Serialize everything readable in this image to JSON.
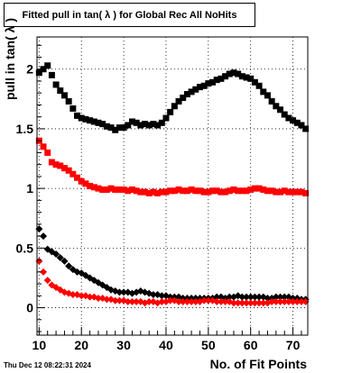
{
  "title": "Fitted pull in tan( λ ) for Global Rec All NoHits",
  "timestamp": "Thu Dec 12 08:22:31 2024",
  "chart_data": {
    "type": "scatter",
    "xlabel": "No. of Fit Points",
    "ylabel": "pull in tan( λ )",
    "xlim": [
      9.5,
      73.5
    ],
    "ylim": [
      -0.23,
      2.27
    ],
    "grid": true,
    "x_ticks": [
      10,
      20,
      30,
      40,
      50,
      60,
      70
    ],
    "y_ticks": [
      0,
      0.5,
      1,
      1.5,
      2
    ],
    "x": [
      10,
      11,
      12,
      13,
      14,
      15,
      16,
      17,
      18,
      19,
      20,
      21,
      22,
      23,
      24,
      25,
      26,
      27,
      28,
      29,
      30,
      31,
      32,
      33,
      34,
      35,
      36,
      37,
      38,
      39,
      40,
      41,
      42,
      43,
      44,
      45,
      46,
      47,
      48,
      49,
      50,
      51,
      52,
      53,
      54,
      55,
      56,
      57,
      58,
      59,
      60,
      61,
      62,
      63,
      64,
      65,
      66,
      67,
      68,
      69,
      70,
      71,
      72,
      73
    ],
    "series": [
      {
        "color": "#000000",
        "marker": "square",
        "values": [
          1.97,
          2.0,
          2.03,
          1.95,
          1.87,
          1.82,
          1.78,
          1.73,
          1.67,
          1.61,
          1.59,
          1.58,
          1.57,
          1.56,
          1.55,
          1.54,
          1.52,
          1.51,
          1.49,
          1.51,
          1.51,
          1.53,
          1.56,
          1.55,
          1.53,
          1.54,
          1.53,
          1.54,
          1.53,
          1.55,
          1.59,
          1.64,
          1.69,
          1.73,
          1.76,
          1.79,
          1.81,
          1.83,
          1.85,
          1.86,
          1.88,
          1.89,
          1.91,
          1.92,
          1.94,
          1.96,
          1.97,
          1.96,
          1.94,
          1.93,
          1.92,
          1.89,
          1.86,
          1.81,
          1.78,
          1.73,
          1.69,
          1.66,
          1.62,
          1.59,
          1.57,
          1.55,
          1.53,
          1.5
        ]
      },
      {
        "color": "#ff0000",
        "marker": "square",
        "values": [
          1.4,
          1.35,
          1.3,
          1.22,
          1.2,
          1.19,
          1.17,
          1.15,
          1.12,
          1.09,
          1.06,
          1.04,
          1.02,
          1.01,
          1.0,
          0.99,
          0.99,
          1.0,
          0.99,
          0.99,
          0.99,
          0.98,
          0.99,
          0.98,
          0.97,
          0.97,
          0.96,
          0.97,
          0.96,
          0.97,
          0.97,
          0.98,
          0.98,
          0.99,
          0.98,
          0.98,
          0.99,
          0.98,
          0.98,
          0.97,
          0.97,
          0.98,
          0.98,
          0.97,
          0.97,
          0.98,
          0.99,
          0.98,
          0.98,
          0.98,
          0.99,
          1.0,
          1.0,
          0.99,
          0.98,
          0.98,
          0.97,
          0.97,
          0.98,
          0.97,
          0.97,
          0.97,
          0.97,
          0.96
        ]
      },
      {
        "color": "#000000",
        "marker": "diamond",
        "values": [
          0.66,
          0.6,
          0.49,
          0.47,
          0.45,
          0.42,
          0.39,
          0.35,
          0.32,
          0.3,
          0.29,
          0.27,
          0.25,
          0.23,
          0.21,
          0.19,
          0.17,
          0.15,
          0.14,
          0.13,
          0.13,
          0.13,
          0.12,
          0.13,
          0.14,
          0.13,
          0.12,
          0.11,
          0.11,
          0.1,
          0.1,
          0.09,
          0.09,
          0.09,
          0.08,
          0.08,
          0.08,
          0.08,
          0.08,
          0.08,
          0.08,
          0.08,
          0.09,
          0.09,
          0.08,
          0.09,
          0.09,
          0.1,
          0.09,
          0.09,
          0.09,
          0.09,
          0.09,
          0.09,
          0.08,
          0.08,
          0.09,
          0.09,
          0.09,
          0.09,
          0.08,
          0.08,
          0.07,
          0.07
        ]
      },
      {
        "color": "#ff0000",
        "marker": "diamond",
        "values": [
          0.39,
          0.3,
          0.23,
          0.19,
          0.17,
          0.15,
          0.13,
          0.12,
          0.11,
          0.11,
          0.1,
          0.1,
          0.09,
          0.09,
          0.08,
          0.08,
          0.07,
          0.07,
          0.06,
          0.06,
          0.06,
          0.05,
          0.05,
          0.05,
          0.05,
          0.04,
          0.05,
          0.05,
          0.04,
          0.05,
          0.05,
          0.06,
          0.06,
          0.05,
          0.05,
          0.05,
          0.05,
          0.05,
          0.05,
          0.06,
          0.06,
          0.06,
          0.05,
          0.05,
          0.05,
          0.05,
          0.04,
          0.04,
          0.04,
          0.04,
          0.04,
          0.04,
          0.04,
          0.04,
          0.04,
          0.05,
          0.05,
          0.05,
          0.05,
          0.05,
          0.05,
          0.05,
          0.05,
          0.05
        ]
      }
    ]
  }
}
